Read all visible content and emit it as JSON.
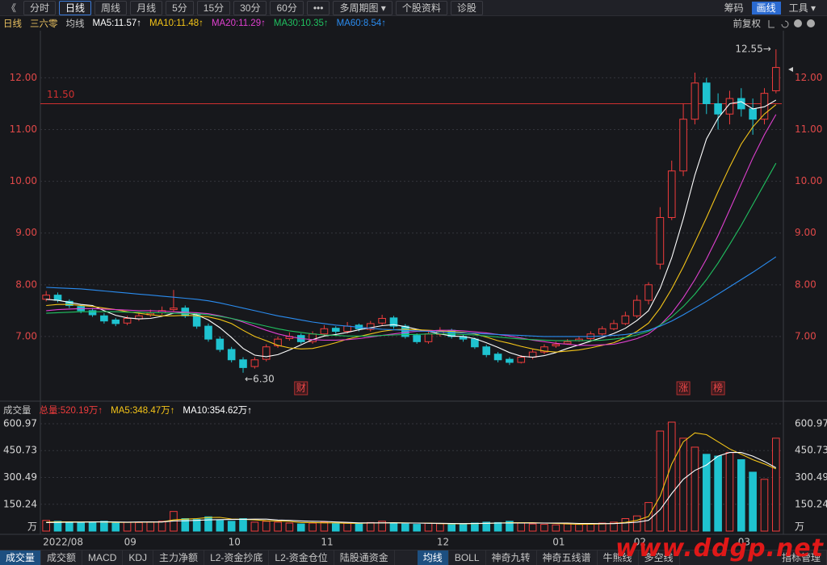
{
  "toolbar": {
    "back": "《",
    "left": [
      "分时",
      "日线",
      "周线",
      "月线",
      "5分",
      "15分",
      "30分",
      "60分",
      "•••",
      "多周期图 ▾",
      "个股资料",
      "诊股"
    ],
    "active": 1,
    "right": [
      "筹码",
      "画线",
      "工具 ▾"
    ],
    "right_active": 1
  },
  "chart_data": [
    {
      "type": "candlestick",
      "title": "日线",
      "subtitle": "三六零",
      "ma_label": "均线",
      "adjust_label": "前复权",
      "up_color": "#f03c3c",
      "down_color": "#1fc3d0",
      "open": [
        7.72,
        7.8,
        7.68,
        7.58,
        7.5,
        7.4,
        7.32,
        7.26,
        7.34,
        7.42,
        7.46,
        7.52,
        7.55,
        7.42,
        7.2,
        6.95,
        6.75,
        6.55,
        6.42,
        6.56,
        6.82,
        6.96,
        7.02,
        6.9,
        7.05,
        7.16,
        7.1,
        7.22,
        7.14,
        7.26,
        7.36,
        7.2,
        7.02,
        6.9,
        7.04,
        7.12,
        7.0,
        6.95,
        6.8,
        6.66,
        6.56,
        6.5,
        6.6,
        6.7,
        6.82,
        6.86,
        6.92,
        6.96,
        7.05,
        7.15,
        7.25,
        7.4,
        7.7,
        8.4,
        9.3,
        10.2,
        11.2,
        11.9,
        11.5,
        11.3,
        11.6,
        11.4,
        11.2,
        11.75
      ],
      "high": [
        7.88,
        7.85,
        7.72,
        7.62,
        7.55,
        7.45,
        7.36,
        7.4,
        7.46,
        7.52,
        7.58,
        7.9,
        7.6,
        7.45,
        7.25,
        7.0,
        6.8,
        6.6,
        6.6,
        6.85,
        7.0,
        7.08,
        7.06,
        7.1,
        7.22,
        7.2,
        7.28,
        7.25,
        7.3,
        7.42,
        7.4,
        7.24,
        7.06,
        7.1,
        7.18,
        7.15,
        7.04,
        6.98,
        6.84,
        6.7,
        6.6,
        6.64,
        6.75,
        6.85,
        6.9,
        6.95,
        7.0,
        7.1,
        7.2,
        7.32,
        7.48,
        7.8,
        8.05,
        9.5,
        10.4,
        11.5,
        12.1,
        12.0,
        11.7,
        11.75,
        11.8,
        11.6,
        11.8,
        12.55
      ],
      "low": [
        7.68,
        7.66,
        7.55,
        7.45,
        7.38,
        7.25,
        7.2,
        7.22,
        7.3,
        7.38,
        7.42,
        7.48,
        7.36,
        7.15,
        6.9,
        6.7,
        6.5,
        6.3,
        6.38,
        6.52,
        6.78,
        6.92,
        6.86,
        6.86,
        7.0,
        7.05,
        7.06,
        7.1,
        7.1,
        7.22,
        7.15,
        6.96,
        6.86,
        6.86,
        7.0,
        6.96,
        6.9,
        6.76,
        6.6,
        6.5,
        6.45,
        6.48,
        6.56,
        6.66,
        6.78,
        6.84,
        6.9,
        6.92,
        7.02,
        7.12,
        7.22,
        7.36,
        7.62,
        8.3,
        9.25,
        10.1,
        11.1,
        11.3,
        11.0,
        11.1,
        11.25,
        10.9,
        11.1,
        11.7
      ],
      "close": [
        7.8,
        7.7,
        7.6,
        7.5,
        7.42,
        7.3,
        7.25,
        7.35,
        7.4,
        7.45,
        7.5,
        7.55,
        7.4,
        7.2,
        6.95,
        6.75,
        6.55,
        6.4,
        6.55,
        6.8,
        6.95,
        7.0,
        6.9,
        7.05,
        7.15,
        7.1,
        7.2,
        7.15,
        7.25,
        7.35,
        7.2,
        7.0,
        6.9,
        7.05,
        7.1,
        7.0,
        6.95,
        6.8,
        6.65,
        6.55,
        6.5,
        6.6,
        6.7,
        6.8,
        6.85,
        6.9,
        6.95,
        7.05,
        7.15,
        7.25,
        7.4,
        7.7,
        8.0,
        9.3,
        10.2,
        11.2,
        11.9,
        11.5,
        11.3,
        11.6,
        11.4,
        11.2,
        11.7,
        12.2
      ],
      "series": [
        {
          "name": "MA5",
          "legend_label": "MA5:11.57↑",
          "color": "#ffffff",
          "values": [
            7.72,
            7.7,
            7.66,
            7.62,
            7.6,
            7.5,
            7.41,
            7.36,
            7.34,
            7.35,
            7.39,
            7.45,
            7.46,
            7.42,
            7.32,
            7.17,
            6.98,
            6.77,
            6.64,
            6.61,
            6.65,
            6.74,
            6.84,
            6.94,
            7.01,
            7.04,
            7.08,
            7.13,
            7.17,
            7.21,
            7.23,
            7.19,
            7.14,
            7.1,
            7.05,
            7.01,
            7.0,
            6.96,
            6.88,
            6.79,
            6.69,
            6.62,
            6.6,
            6.63,
            6.69,
            6.77,
            6.84,
            6.91,
            6.98,
            7.06,
            7.16,
            7.31,
            7.5,
            7.93,
            8.52,
            9.28,
            10.12,
            10.82,
            11.22,
            11.5,
            11.54,
            11.4,
            11.44,
            11.57
          ]
        },
        {
          "name": "MA10",
          "legend_label": "MA10:11.48↑",
          "color": "#f5c518",
          "values": [
            7.6,
            7.62,
            7.62,
            7.6,
            7.58,
            7.55,
            7.52,
            7.48,
            7.45,
            7.42,
            7.4,
            7.4,
            7.41,
            7.4,
            7.38,
            7.33,
            7.25,
            7.12,
            7.0,
            6.92,
            6.83,
            6.78,
            6.76,
            6.77,
            6.82,
            6.88,
            6.95,
            7.0,
            7.05,
            7.1,
            7.13,
            7.14,
            7.13,
            7.12,
            7.11,
            7.1,
            7.08,
            7.05,
            6.99,
            6.92,
            6.87,
            6.81,
            6.76,
            6.72,
            6.7,
            6.72,
            6.74,
            6.78,
            6.83,
            6.88,
            6.98,
            7.1,
            7.26,
            7.55,
            7.92,
            8.35,
            8.82,
            9.3,
            9.8,
            10.28,
            10.72,
            11.05,
            11.3,
            11.48
          ]
        },
        {
          "name": "MA20",
          "legend_label": "MA20:11.29↑",
          "color": "#e040d0",
          "values": [
            7.5,
            7.52,
            7.53,
            7.54,
            7.54,
            7.53,
            7.52,
            7.51,
            7.5,
            7.5,
            7.49,
            7.48,
            7.47,
            7.46,
            7.44,
            7.4,
            7.35,
            7.28,
            7.2,
            7.12,
            7.05,
            7.0,
            6.96,
            6.94,
            6.93,
            6.93,
            6.94,
            6.96,
            6.99,
            7.02,
            7.05,
            7.08,
            7.1,
            7.11,
            7.12,
            7.12,
            7.11,
            7.09,
            7.07,
            7.04,
            7.01,
            6.97,
            6.93,
            6.9,
            6.87,
            6.85,
            6.83,
            6.83,
            6.84,
            6.85,
            6.9,
            6.96,
            7.05,
            7.22,
            7.45,
            7.75,
            8.1,
            8.5,
            8.95,
            9.45,
            9.95,
            10.45,
            10.9,
            11.29
          ]
        },
        {
          "name": "MA30",
          "legend_label": "MA30:10.35↑",
          "color": "#20c060",
          "values": [
            7.45,
            7.46,
            7.47,
            7.48,
            7.48,
            7.48,
            7.48,
            7.47,
            7.47,
            7.46,
            7.46,
            7.45,
            7.45,
            7.44,
            7.42,
            7.39,
            7.35,
            7.3,
            7.25,
            7.2,
            7.15,
            7.11,
            7.08,
            7.05,
            7.03,
            7.02,
            7.01,
            7.01,
            7.01,
            7.02,
            7.03,
            7.04,
            7.04,
            7.05,
            7.05,
            7.05,
            7.04,
            7.03,
            7.01,
            6.99,
            6.97,
            6.95,
            6.94,
            6.93,
            6.92,
            6.92,
            6.92,
            6.92,
            6.93,
            6.95,
            6.98,
            7.03,
            7.1,
            7.22,
            7.38,
            7.58,
            7.82,
            8.1,
            8.42,
            8.78,
            9.15,
            9.55,
            9.95,
            10.35
          ]
        },
        {
          "name": "MA60",
          "legend_label": "MA60:8.54↑",
          "color": "#2a8cf0",
          "values": [
            7.95,
            7.94,
            7.93,
            7.92,
            7.9,
            7.88,
            7.86,
            7.84,
            7.82,
            7.8,
            7.78,
            7.76,
            7.74,
            7.72,
            7.69,
            7.65,
            7.6,
            7.55,
            7.5,
            7.45,
            7.4,
            7.36,
            7.32,
            7.28,
            7.25,
            7.22,
            7.2,
            7.18,
            7.16,
            7.14,
            7.13,
            7.12,
            7.11,
            7.1,
            7.09,
            7.08,
            7.07,
            7.06,
            7.05,
            7.04,
            7.03,
            7.02,
            7.01,
            7.0,
            7.0,
            7.0,
            7.0,
            7.0,
            7.01,
            7.02,
            7.04,
            7.07,
            7.12,
            7.2,
            7.3,
            7.42,
            7.55,
            7.68,
            7.82,
            7.96,
            8.1,
            8.24,
            8.39,
            8.54
          ]
        }
      ],
      "ylim": [
        5.86,
        12.88
      ],
      "yticks": [
        {
          "value": 7,
          "label": "7.00"
        },
        {
          "value": 8,
          "label": "8.00"
        },
        {
          "value": 9,
          "label": "9.00"
        },
        {
          "value": 10,
          "label": "10.00"
        },
        {
          "value": 11,
          "label": "11.00"
        },
        {
          "value": 12,
          "label": "12.00"
        }
      ],
      "grid": true,
      "ref_line": {
        "value": 11.5,
        "label": "11.50",
        "color": "#d03030"
      },
      "high_label": "12.55→",
      "low_label": "←6.30",
      "markers": [
        {
          "text": "财",
          "category_index": 22
        },
        {
          "text": "涨",
          "category_index": 55
        },
        {
          "text": "榜",
          "category_index": 58
        }
      ]
    },
    {
      "type": "bar",
      "title": "成交量",
      "total_label": "总量:520.19万↑",
      "unit": "万",
      "categories": [
        "2022/08",
        null,
        null,
        null,
        null,
        null,
        null,
        "09",
        null,
        null,
        null,
        null,
        null,
        null,
        null,
        null,
        "10",
        null,
        null,
        null,
        null,
        null,
        null,
        null,
        "11",
        null,
        null,
        null,
        null,
        null,
        null,
        null,
        null,
        null,
        "12",
        null,
        null,
        null,
        null,
        null,
        null,
        null,
        null,
        null,
        "01",
        null,
        null,
        null,
        null,
        null,
        null,
        "02",
        null,
        null,
        null,
        null,
        null,
        null,
        null,
        null,
        "03",
        null,
        null,
        null
      ],
      "values": [
        60,
        55,
        50,
        45,
        50,
        55,
        45,
        50,
        48,
        52,
        55,
        110,
        70,
        65,
        80,
        60,
        55,
        70,
        50,
        55,
        50,
        45,
        40,
        45,
        50,
        42,
        45,
        40,
        48,
        55,
        45,
        40,
        38,
        45,
        42,
        40,
        38,
        45,
        50,
        48,
        55,
        45,
        40,
        38,
        35,
        40,
        38,
        42,
        45,
        50,
        70,
        85,
        160,
        560,
        610,
        520,
        470,
        430,
        420,
        440,
        400,
        330,
        290,
        520.19
      ],
      "series": [
        {
          "name": "MA5",
          "legend_label": "MA5:348.47万↑",
          "color": "#f5c518",
          "values": [
            50,
            52,
            52,
            51,
            52,
            51,
            49,
            49,
            50,
            50,
            51,
            63,
            67,
            70,
            76,
            77,
            68,
            66,
            63,
            58,
            56,
            54,
            48,
            48,
            46,
            46,
            44,
            44,
            45,
            46,
            47,
            46,
            45,
            45,
            42,
            41,
            41,
            42,
            43,
            45,
            47,
            47,
            47,
            45,
            43,
            40,
            38,
            39,
            40,
            43,
            49,
            60,
            82,
            195,
            375,
            500,
            550,
            540,
            500,
            460,
            430,
            400,
            376,
            348.47
          ]
        },
        {
          "name": "MA10",
          "legend_label": "MA10:354.62万↑",
          "color": "#ffffff",
          "values": [
            48,
            49,
            50,
            50,
            51,
            52,
            51,
            50,
            51,
            51,
            51,
            57,
            58,
            60,
            63,
            64,
            65,
            66,
            67,
            67,
            62,
            60,
            57,
            55,
            54,
            51,
            49,
            46,
            46,
            46,
            46,
            45,
            45,
            44,
            44,
            43,
            42,
            43,
            44,
            45,
            45,
            45,
            45,
            45,
            45,
            45,
            43,
            43,
            42,
            42,
            45,
            50,
            60,
            120,
            210,
            290,
            340,
            370,
            420,
            440,
            440,
            420,
            390,
            354.62
          ]
        }
      ],
      "ylim": [
        0,
        632.6
      ],
      "yticks": [
        150.24,
        300.49,
        450.73,
        600.97
      ],
      "grid": true
    }
  ],
  "tabs": {
    "left": [
      "成交量",
      "成交额",
      "MACD",
      "KDJ",
      "主力净额",
      "L2-资金抄底",
      "L2-资金仓位",
      "陆股通资金"
    ],
    "left_active": 0,
    "right": [
      "均线",
      "BOLL",
      "神奇九转",
      "神奇五线谱",
      "牛熊线",
      "多空线"
    ],
    "right_active": 0,
    "manage": "指标管理"
  },
  "watermark": "www.ddgp.net"
}
